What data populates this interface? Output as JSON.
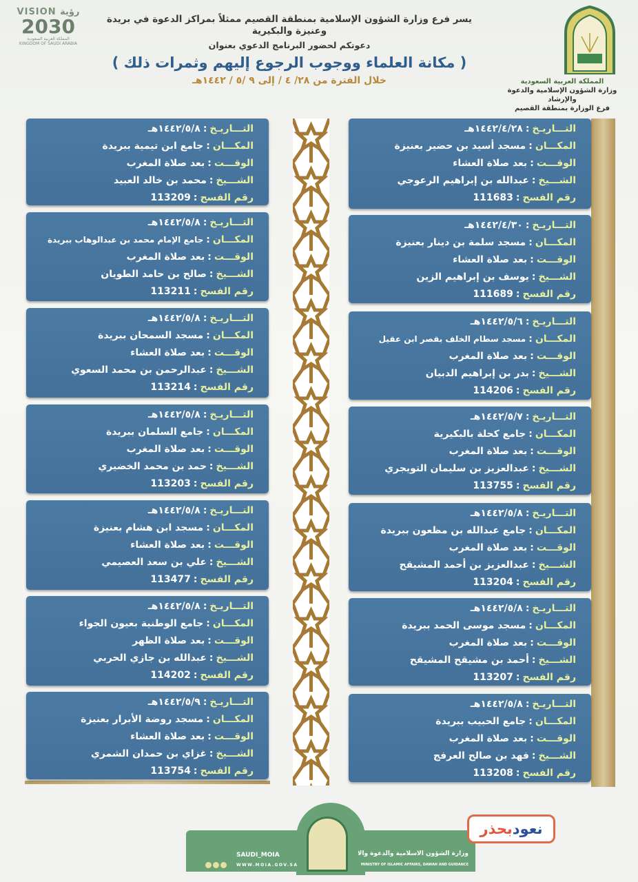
{
  "header": {
    "vision_logo": {
      "line1": "VISION رؤية",
      "year": "2030",
      "sub_ar": "المملكة العربية السعودية",
      "sub_en": "KINGDOM OF SAUDI ARABIA"
    },
    "intro": "يسر فرع وزارة الشؤون الإسلامية بمنطقة القصيم ممثلاً بمراكز الدعوة في بريدة وعنيزة والبكيرية",
    "invite": "دعوتكم لحضور البرنامج الدعوي بعنوان",
    "title": "( مكانة العلماء ووجوب الرجوع إليهم وثمرات ذلك )",
    "period": "خلال الفترة من ٢٨/ ٤ / إلى ٩ /٥ / ١٤٤٢هـ",
    "org": [
      "المملكة العربية السعودية",
      "وزارة الشؤون الإسلامية والدعوة والإرشاد",
      "فرع الوزارة بمنطقة القصيم"
    ]
  },
  "labels": {
    "date": "التـــاريـخ",
    "place": "المكـــان",
    "time": "الوقـــت",
    "sheikh": "الشـــيخ",
    "permit": "رقم الفسح",
    "colon": ":"
  },
  "right_column": [
    {
      "date": "١٤٤٢/٤/٢٨هـ",
      "place": "مسجد أسيد بن حضير بعنيزة",
      "time": "بعد صلاة العشاء",
      "sheikh": "عبدالله بن إبراهيم الرعوجي",
      "permit": "111683"
    },
    {
      "date": "١٤٤٢/٤/٣٠هـ",
      "place": "مسجد سلمة بن دينار بعنيزة",
      "time": "بعد صلاة العشاء",
      "sheikh": "يوسف بن إبراهيم الزين",
      "permit": "111689"
    },
    {
      "date": "١٤٤٢/٥/٦هـ",
      "place": "مسجد سطام الخلف بقصر ابن عقيل",
      "time": "بعد صلاة المغرب",
      "sheikh": "بدر بن إبراهيم الدبيان",
      "permit": "114206"
    },
    {
      "date": "١٤٤٢/٥/٧هـ",
      "place": "جامع كحلة بالبكيرية",
      "time": "بعد صلاة المغرب",
      "sheikh": "عبدالعزيز بن سليمان التويجري",
      "permit": "113755"
    },
    {
      "date": "١٤٤٢/٥/٨هـ",
      "place": "جامع عبدالله بن مظعون ببريدة",
      "time": "بعد صلاة المغرب",
      "sheikh": "عبدالعزيز بن أحمد المشيقح",
      "permit": "113204"
    },
    {
      "date": "١٤٤٢/٥/٨هـ",
      "place": "مسجد موسى الحمد ببريدة",
      "time": "بعد صلاة المغرب",
      "sheikh": "أحمد بن مشيقح المشيقح",
      "permit": "113207"
    },
    {
      "date": "١٤٤٢/٥/٨هـ",
      "place": "جامع الحبيب ببريدة",
      "time": "بعد صلاة المغرب",
      "sheikh": "فهد بن صالح العرفج",
      "permit": "113208"
    }
  ],
  "left_column": [
    {
      "date": "١٤٤٢/٥/٨هـ",
      "place": "جامع ابن تيمية ببريدة",
      "time": "بعد صلاة المغرب",
      "sheikh": "محمد بن خالد العبيد",
      "permit": "113209"
    },
    {
      "date": "١٤٤٢/٥/٨هـ",
      "place": "جامع الإمام محمد بن عبدالوهاب ببريدة",
      "time": "بعد صلاة المغرب",
      "sheikh": "صالح بن حامد الطويان",
      "permit": "113211"
    },
    {
      "date": "١٤٤٢/٥/٨هـ",
      "place": "مسجد السمحان ببريدة",
      "time": "بعد صلاة العشاء",
      "sheikh": "عبدالرحمن بن محمد السعوي",
      "permit": "113214"
    },
    {
      "date": "١٤٤٢/٥/٨هـ",
      "place": "جامع السلمان ببريدة",
      "time": "بعد صلاة المغرب",
      "sheikh": "حمد بن محمد الخضيري",
      "permit": "113203"
    },
    {
      "date": "١٤٤٢/٥/٨هـ",
      "place": "مسجد ابن هشام بعنيزة",
      "time": "بعد صلاة العشاء",
      "sheikh": "علي بن سعد العصيمي",
      "permit": "113477"
    },
    {
      "date": "١٤٤٢/٥/٨هـ",
      "place": "جامع الوطنية بعيون الجواء",
      "time": "بعد صلاة الظهر",
      "sheikh": "عبدالله بن جازي الحربي",
      "permit": "114202"
    },
    {
      "date": "١٤٤٢/٥/٩هـ",
      "place": "مسجد روضة الأبرار بعنيزة",
      "time": "بعد صلاة العشاء",
      "sheikh": "غزاي بن حمدان الشمري",
      "permit": "113754"
    }
  ],
  "footer": {
    "ministry_ar": "وزارة الشؤون الاسلامية والدعوة والارشاد",
    "ministry_en": "MINISTRY OF ISLAMIC AFFAIRS, DAWAH AND GUIDANCE",
    "handle": "SAUDI_MOIA",
    "website": "WWW.MOIA.GOV.SA",
    "campaign": [
      "نعود",
      "بحذر"
    ]
  },
  "colors": {
    "card": "#4b7aa3",
    "label": "#e7efa0",
    "title": "#2f5d8c",
    "period": "#b8893a",
    "gold": "#c8b07a",
    "footer_green": "#6aa277"
  }
}
